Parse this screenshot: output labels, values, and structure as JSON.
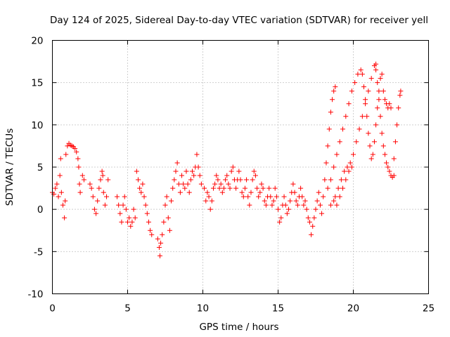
{
  "chart_data": {
    "type": "scatter",
    "title": "Day 124 of 2025, Sidereal Day-to-day VTEC variation (SDTVAR) for receiver yell",
    "xlabel": "GPS time / hours",
    "ylabel": "SDTVAR / TECUs",
    "xlim": [
      0,
      25
    ],
    "ylim": [
      -10,
      20
    ],
    "xticks": [
      0,
      5,
      10,
      15,
      20,
      25
    ],
    "yticks": [
      -10,
      -5,
      0,
      5,
      10,
      15,
      20
    ],
    "xtick_labels": [
      "0",
      "5",
      "10",
      "15",
      "20",
      "25"
    ],
    "ytick_labels": [
      "-10",
      "-5",
      "0",
      "5",
      "10",
      "15",
      "20"
    ],
    "grid": true,
    "marker": "plus",
    "color": "#ff0000",
    "series": [
      {
        "name": "SDTVAR",
        "points": [
          [
            0.0,
            2.0
          ],
          [
            0.1,
            1.8
          ],
          [
            0.2,
            2.5
          ],
          [
            0.3,
            3.0
          ],
          [
            0.4,
            1.5
          ],
          [
            0.5,
            4.0
          ],
          [
            0.55,
            6.0
          ],
          [
            0.6,
            2.0
          ],
          [
            0.7,
            0.5
          ],
          [
            0.8,
            -1.0
          ],
          [
            0.85,
            1.0
          ],
          [
            0.9,
            6.5
          ],
          [
            1.0,
            7.5
          ],
          [
            1.1,
            7.8
          ],
          [
            1.2,
            7.6
          ],
          [
            1.3,
            7.5
          ],
          [
            1.4,
            7.4
          ],
          [
            1.5,
            7.2
          ],
          [
            1.6,
            6.8
          ],
          [
            1.7,
            6.0
          ],
          [
            1.75,
            5.0
          ],
          [
            1.8,
            3.0
          ],
          [
            1.85,
            2.0
          ],
          [
            2.0,
            4.0
          ],
          [
            2.1,
            3.5
          ],
          [
            2.5,
            3.0
          ],
          [
            2.6,
            2.5
          ],
          [
            2.7,
            1.5
          ],
          [
            2.8,
            0.0
          ],
          [
            2.9,
            -0.5
          ],
          [
            3.0,
            1.0
          ],
          [
            3.1,
            2.5
          ],
          [
            3.2,
            3.5
          ],
          [
            3.3,
            4.5
          ],
          [
            3.35,
            4.0
          ],
          [
            3.4,
            2.0
          ],
          [
            3.5,
            0.5
          ],
          [
            3.6,
            1.5
          ],
          [
            3.7,
            3.5
          ],
          [
            4.3,
            1.5
          ],
          [
            4.4,
            0.5
          ],
          [
            4.5,
            -0.5
          ],
          [
            4.6,
            -1.5
          ],
          [
            4.7,
            0.5
          ],
          [
            4.8,
            1.5
          ],
          [
            4.9,
            0.0
          ],
          [
            5.0,
            -1.5
          ],
          [
            5.1,
            -1.0
          ],
          [
            5.2,
            -2.0
          ],
          [
            5.3,
            -1.5
          ],
          [
            5.4,
            0.0
          ],
          [
            5.5,
            -1.0
          ],
          [
            5.6,
            4.5
          ],
          [
            5.7,
            3.5
          ],
          [
            5.8,
            2.5
          ],
          [
            5.9,
            2.0
          ],
          [
            6.0,
            3.0
          ],
          [
            6.1,
            1.5
          ],
          [
            6.2,
            0.5
          ],
          [
            6.3,
            -0.5
          ],
          [
            6.4,
            -1.5
          ],
          [
            6.5,
            -2.5
          ],
          [
            6.6,
            -3.0
          ],
          [
            7.0,
            -3.5
          ],
          [
            7.1,
            -4.5
          ],
          [
            7.15,
            -5.5
          ],
          [
            7.2,
            -4.0
          ],
          [
            7.3,
            -3.0
          ],
          [
            7.4,
            -1.5
          ],
          [
            7.5,
            0.5
          ],
          [
            7.6,
            1.5
          ],
          [
            7.7,
            -1.0
          ],
          [
            7.8,
            -2.5
          ],
          [
            7.9,
            1.0
          ],
          [
            8.0,
            2.5
          ],
          [
            8.1,
            3.5
          ],
          [
            8.2,
            4.5
          ],
          [
            8.3,
            5.5
          ],
          [
            8.4,
            3.0
          ],
          [
            8.5,
            2.0
          ],
          [
            8.6,
            4.0
          ],
          [
            8.7,
            3.0
          ],
          [
            8.8,
            2.5
          ],
          [
            8.9,
            4.5
          ],
          [
            9.0,
            3.0
          ],
          [
            9.1,
            2.0
          ],
          [
            9.2,
            3.5
          ],
          [
            9.3,
            4.5
          ],
          [
            9.4,
            4.0
          ],
          [
            9.5,
            5.0
          ],
          [
            9.6,
            6.5
          ],
          [
            9.7,
            5.0
          ],
          [
            9.8,
            4.0
          ],
          [
            9.9,
            3.0
          ],
          [
            10.1,
            2.5
          ],
          [
            10.2,
            1.0
          ],
          [
            10.3,
            2.0
          ],
          [
            10.4,
            1.5
          ],
          [
            10.5,
            0.0
          ],
          [
            10.6,
            1.0
          ],
          [
            10.7,
            2.5
          ],
          [
            10.8,
            3.0
          ],
          [
            10.9,
            4.0
          ],
          [
            11.0,
            3.5
          ],
          [
            11.1,
            2.5
          ],
          [
            11.2,
            3.0
          ],
          [
            11.3,
            2.0
          ],
          [
            11.4,
            2.5
          ],
          [
            11.5,
            3.5
          ],
          [
            11.6,
            4.0
          ],
          [
            11.7,
            3.0
          ],
          [
            11.8,
            2.5
          ],
          [
            11.9,
            4.5
          ],
          [
            12.0,
            5.0
          ],
          [
            12.1,
            3.5
          ],
          [
            12.2,
            2.5
          ],
          [
            12.3,
            3.5
          ],
          [
            12.4,
            4.5
          ],
          [
            12.5,
            3.5
          ],
          [
            12.6,
            2.0
          ],
          [
            12.7,
            1.5
          ],
          [
            12.8,
            2.5
          ],
          [
            12.9,
            3.5
          ],
          [
            13.0,
            1.5
          ],
          [
            13.1,
            0.5
          ],
          [
            13.2,
            2.0
          ],
          [
            13.3,
            3.5
          ],
          [
            13.4,
            4.5
          ],
          [
            13.5,
            4.0
          ],
          [
            13.6,
            2.5
          ],
          [
            13.7,
            1.5
          ],
          [
            13.8,
            2.0
          ],
          [
            13.9,
            3.0
          ],
          [
            14.0,
            2.5
          ],
          [
            14.1,
            1.0
          ],
          [
            14.2,
            0.5
          ],
          [
            14.3,
            1.5
          ],
          [
            14.4,
            2.5
          ],
          [
            14.5,
            1.5
          ],
          [
            14.6,
            0.5
          ],
          [
            14.7,
            1.0
          ],
          [
            14.8,
            2.5
          ],
          [
            14.9,
            1.5
          ],
          [
            15.0,
            0.0
          ],
          [
            15.1,
            -1.5
          ],
          [
            15.2,
            -1.0
          ],
          [
            15.3,
            0.5
          ],
          [
            15.4,
            1.5
          ],
          [
            15.5,
            0.5
          ],
          [
            15.6,
            -0.5
          ],
          [
            15.7,
            0.0
          ],
          [
            15.8,
            1.0
          ],
          [
            15.9,
            2.0
          ],
          [
            16.0,
            3.0
          ],
          [
            16.1,
            2.0
          ],
          [
            16.2,
            1.0
          ],
          [
            16.3,
            0.5
          ],
          [
            16.4,
            1.5
          ],
          [
            16.5,
            2.5
          ],
          [
            16.6,
            1.5
          ],
          [
            16.7,
            0.5
          ],
          [
            16.8,
            1.0
          ],
          [
            16.9,
            0.0
          ],
          [
            17.0,
            -1.0
          ],
          [
            17.1,
            -1.5
          ],
          [
            17.2,
            -3.0
          ],
          [
            17.3,
            -2.0
          ],
          [
            17.4,
            -1.0
          ],
          [
            17.5,
            0.0
          ],
          [
            17.6,
            1.0
          ],
          [
            17.7,
            2.0
          ],
          [
            17.8,
            0.5
          ],
          [
            17.9,
            -0.5
          ],
          [
            18.0,
            1.5
          ],
          [
            18.1,
            3.5
          ],
          [
            18.2,
            5.5
          ],
          [
            18.3,
            7.5
          ],
          [
            18.4,
            9.5
          ],
          [
            18.5,
            11.5
          ],
          [
            18.6,
            13.0
          ],
          [
            18.7,
            14.0
          ],
          [
            18.8,
            14.5
          ],
          [
            18.3,
            2.5
          ],
          [
            18.5,
            3.5
          ],
          [
            18.7,
            5.0
          ],
          [
            18.9,
            6.5
          ],
          [
            19.1,
            8.0
          ],
          [
            19.3,
            9.5
          ],
          [
            19.5,
            11.0
          ],
          [
            19.7,
            12.5
          ],
          [
            19.9,
            14.0
          ],
          [
            20.1,
            15.0
          ],
          [
            20.3,
            16.0
          ],
          [
            20.5,
            16.5
          ],
          [
            18.8,
            1.5
          ],
          [
            19.0,
            2.5
          ],
          [
            19.2,
            3.5
          ],
          [
            19.4,
            4.5
          ],
          [
            19.6,
            5.0
          ],
          [
            19.8,
            5.5
          ],
          [
            20.0,
            6.5
          ],
          [
            20.2,
            8.0
          ],
          [
            20.4,
            9.5
          ],
          [
            20.6,
            11.0
          ],
          [
            20.8,
            12.5
          ],
          [
            21.0,
            14.0
          ],
          [
            21.2,
            15.5
          ],
          [
            21.4,
            17.0
          ],
          [
            21.5,
            17.2
          ],
          [
            18.5,
            0.5
          ],
          [
            18.7,
            1.0
          ],
          [
            18.9,
            0.5
          ],
          [
            19.1,
            1.5
          ],
          [
            19.3,
            2.5
          ],
          [
            19.5,
            3.5
          ],
          [
            19.7,
            4.5
          ],
          [
            19.9,
            5.0
          ],
          [
            20.6,
            16.0
          ],
          [
            20.7,
            14.5
          ],
          [
            20.8,
            13.0
          ],
          [
            20.9,
            11.0
          ],
          [
            21.0,
            9.0
          ],
          [
            21.1,
            7.5
          ],
          [
            21.2,
            6.0
          ],
          [
            21.3,
            6.5
          ],
          [
            21.4,
            8.0
          ],
          [
            21.5,
            10.0
          ],
          [
            21.6,
            12.0
          ],
          [
            21.7,
            14.0
          ],
          [
            21.8,
            15.5
          ],
          [
            21.9,
            16.0
          ],
          [
            21.5,
            16.5
          ],
          [
            21.6,
            15.0
          ],
          [
            21.7,
            13.0
          ],
          [
            21.8,
            11.0
          ],
          [
            21.9,
            9.0
          ],
          [
            22.0,
            7.5
          ],
          [
            22.1,
            6.5
          ],
          [
            22.2,
            5.5
          ],
          [
            22.3,
            5.0
          ],
          [
            22.4,
            4.5
          ],
          [
            22.5,
            4.0
          ],
          [
            22.6,
            3.8
          ],
          [
            22.7,
            4.0
          ],
          [
            22.0,
            14.0
          ],
          [
            22.1,
            13.0
          ],
          [
            22.2,
            12.5
          ],
          [
            22.3,
            12.0
          ],
          [
            22.4,
            12.5
          ],
          [
            22.5,
            12.0
          ],
          [
            22.7,
            6.0
          ],
          [
            22.8,
            8.0
          ],
          [
            22.9,
            10.0
          ],
          [
            23.0,
            12.0
          ],
          [
            23.1,
            13.5
          ],
          [
            23.15,
            14.0
          ]
        ]
      }
    ]
  }
}
